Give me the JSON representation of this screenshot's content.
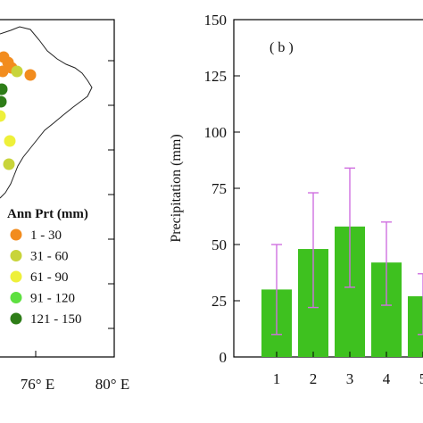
{
  "map_panel": {
    "legend": {
      "title": "Ann Prt (mm)",
      "items": [
        {
          "label": "1 - 30",
          "color": "#f28c1e"
        },
        {
          "label": "31 - 60",
          "color": "#c8d43a"
        },
        {
          "label": "61 - 90",
          "color": "#eef03a"
        },
        {
          "label": "91 - 120",
          "color": "#5ee040"
        },
        {
          "label": "121 - 150",
          "color": "#2e7d18"
        }
      ]
    },
    "lon_labels": [
      "76° E",
      "80° E"
    ],
    "lon_values": [
      76,
      80
    ],
    "outline_color": "#000000"
  },
  "chart_data": {
    "type": "bar",
    "panel_label": "( b )",
    "ylabel": "Precipitation (mm)",
    "xlabel": "",
    "ylim": [
      0,
      150
    ],
    "yticks": [
      0,
      25,
      50,
      75,
      100,
      125,
      150
    ],
    "categories": [
      "1",
      "2",
      "3",
      "4",
      "5"
    ],
    "values": [
      30,
      48,
      58,
      42,
      27
    ],
    "error_low": [
      10,
      22,
      31,
      23,
      10
    ],
    "error_high": [
      50,
      73,
      84,
      60,
      37
    ],
    "bar_color": "#3ec11f",
    "error_color": "#d070e0",
    "grid": false
  }
}
